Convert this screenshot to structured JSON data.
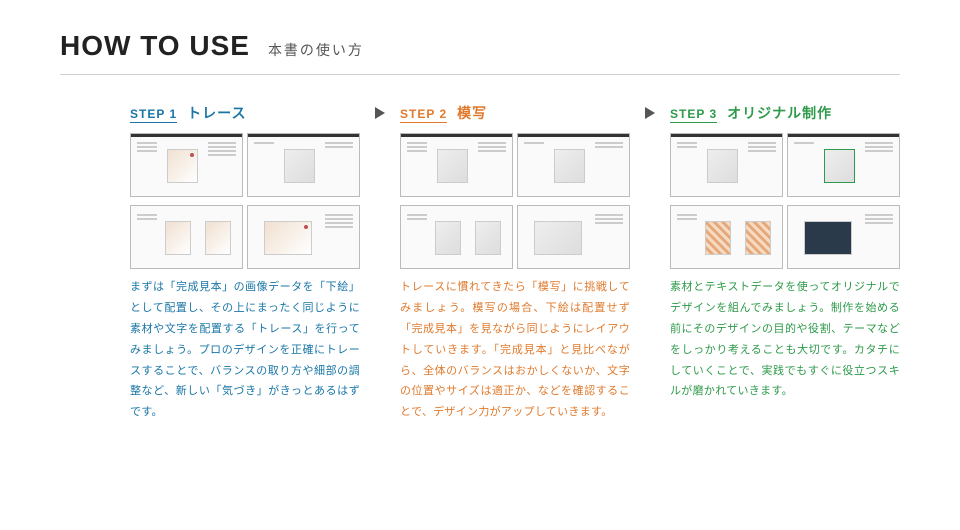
{
  "header": {
    "en": "HOW TO USE",
    "jp": "本書の使い方"
  },
  "steps": [
    {
      "tag": "STEP 1",
      "title": "トレース",
      "desc": "まずは「完成見本」の画像データを「下絵」として配置し、その上にまったく同じように素材や文字を配置する「トレース」を行ってみましょう。プロのデザインを正確にトレースすることで、バランスの取り方や細部の調整など、新しい「気づき」がきっとあるはずです。"
    },
    {
      "tag": "STEP 2",
      "title": "模写",
      "desc": "トレースに慣れてきたら「模写」に挑戦してみましょう。模写の場合、下絵は配置せず「完成見本」を見ながら同じようにレイアウトしていきます。「完成見本」と見比べながら、全体のバランスはおかしくないか、文字の位置やサイズは適正か、などを確認することで、デザイン力がアップしていきます。"
    },
    {
      "tag": "STEP 3",
      "title": "オリジナル制作",
      "desc": "素材とテキストデータを使ってオリジナルでデザインを組んでみましょう。制作を始める前にそのデザインの目的や役割、テーマなどをしっかり考えることも大切です。カタチにしていくことで、実践でもすぐに役立つスキルが磨かれていきます。"
    }
  ],
  "colors": {
    "step1": "#1976a6",
    "step2": "#e07a2d",
    "step3": "#2e9a4a",
    "rule": "#d0d0d0",
    "arrow": "#555555"
  }
}
